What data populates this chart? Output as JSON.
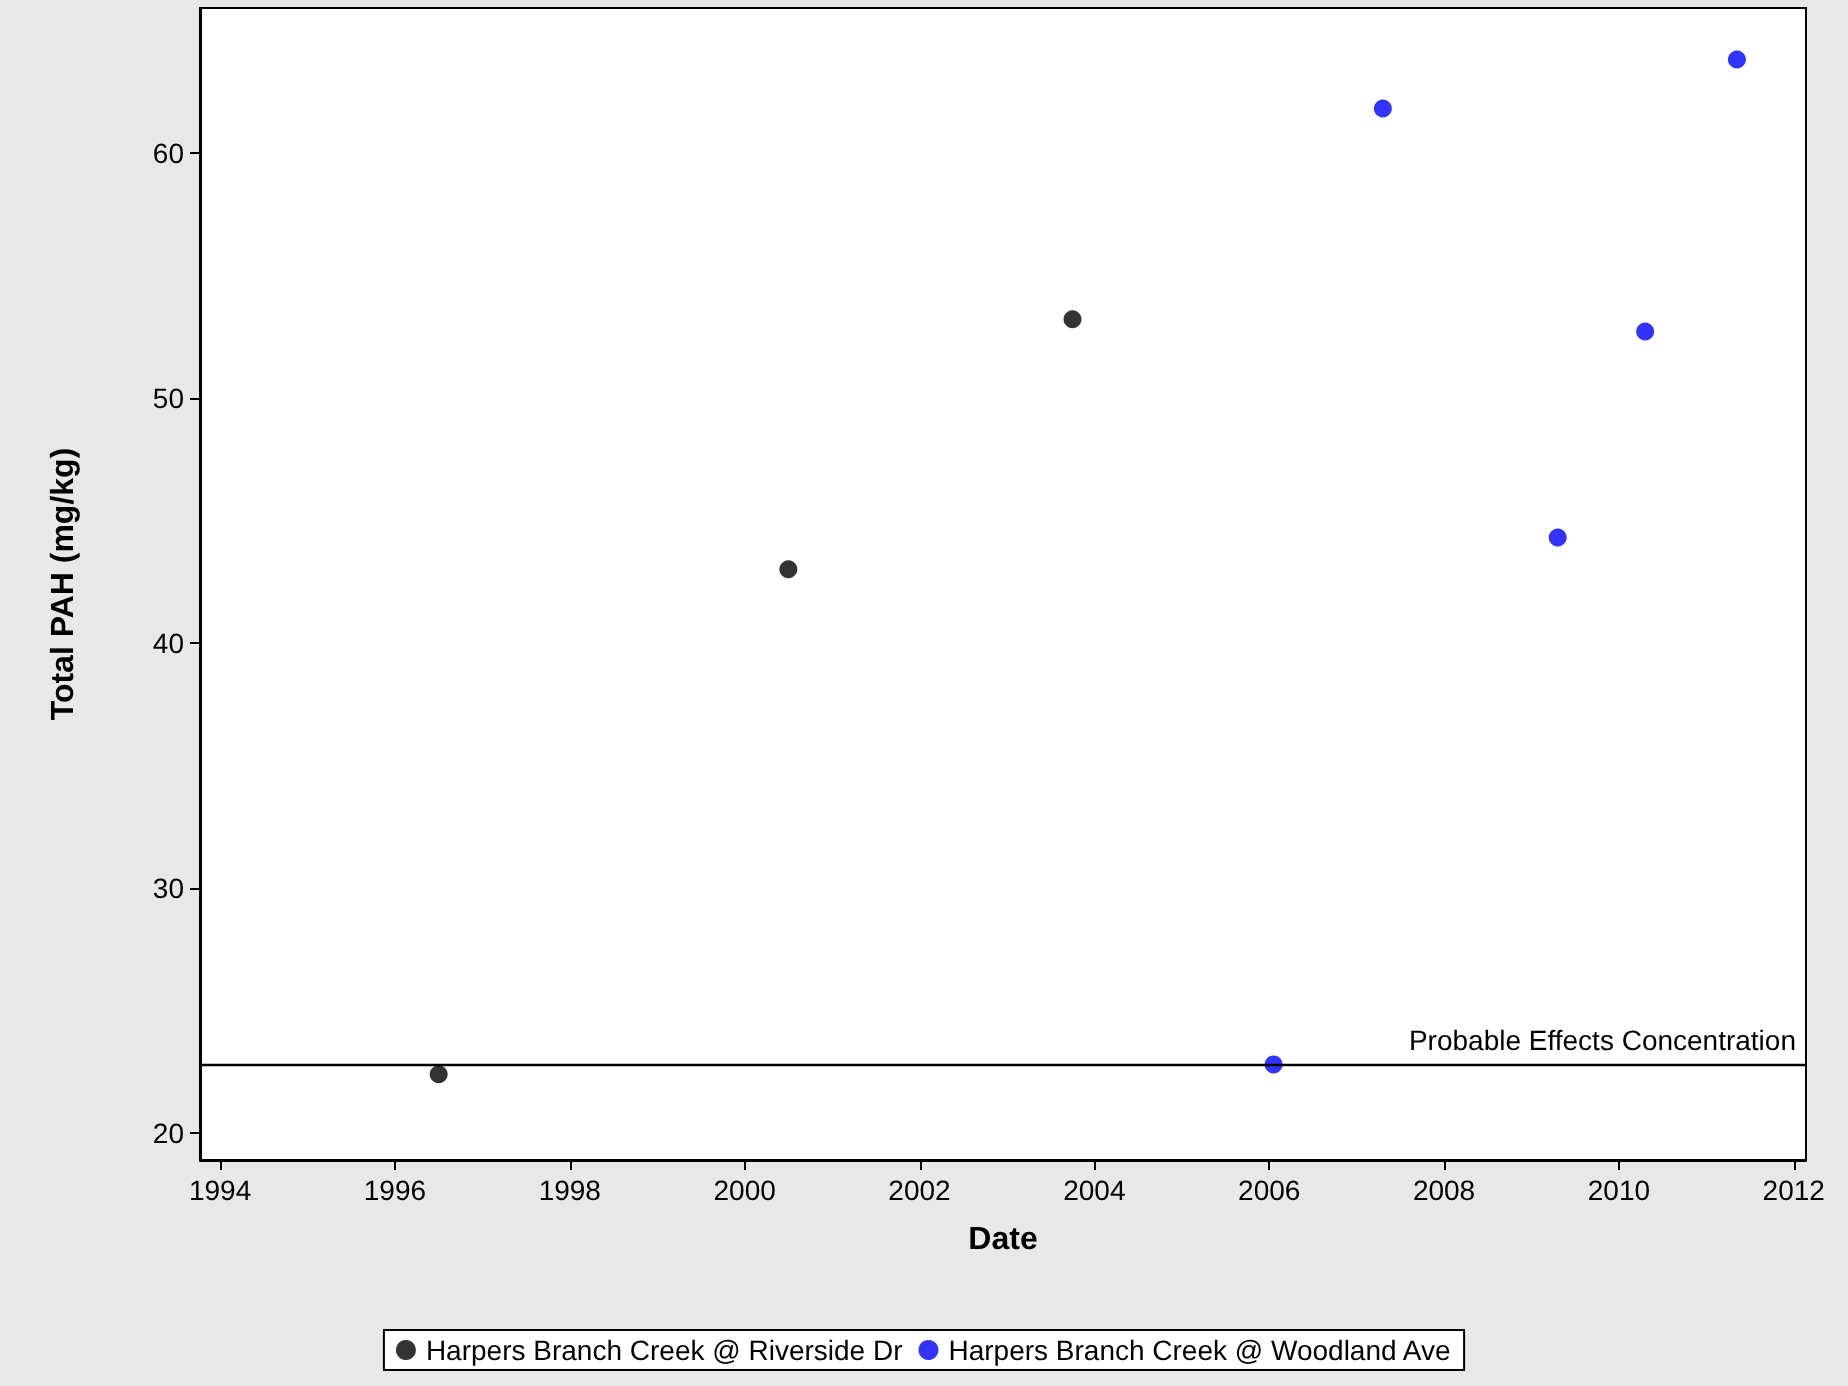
{
  "chart_data": {
    "type": "scatter",
    "xlabel": "Date",
    "ylabel": "Total PAH (mg/kg)",
    "xlim": [
      1993.77,
      2012.14
    ],
    "xticks": [
      1994,
      1996,
      1998,
      2000,
      2002,
      2004,
      2006,
      2008,
      2010,
      2012
    ],
    "ylim": [
      18.9,
      65.9
    ],
    "yticks": [
      20,
      30,
      40,
      50,
      60
    ],
    "series": [
      {
        "name": "Harpers Branch Creek @ Riverside Dr",
        "color": "#000000",
        "x": [
          1996.5,
          2000.5,
          2003.75
        ],
        "values": [
          22.4,
          43.0,
          53.2
        ]
      },
      {
        "name": "Harpers Branch Creek @ Woodland Ave",
        "color": "#0000ff",
        "x": [
          2006.05,
          2007.3,
          2009.3,
          2010.3,
          2011.35
        ],
        "values": [
          22.8,
          61.8,
          44.3,
          52.7,
          63.8
        ]
      }
    ],
    "ref_lines": [
      {
        "axis": "y",
        "value": 22.8,
        "label": "Probable Effects Concentration",
        "color": "#000000"
      }
    ],
    "grid": false,
    "legend": "bottom",
    "marker": "circle"
  }
}
